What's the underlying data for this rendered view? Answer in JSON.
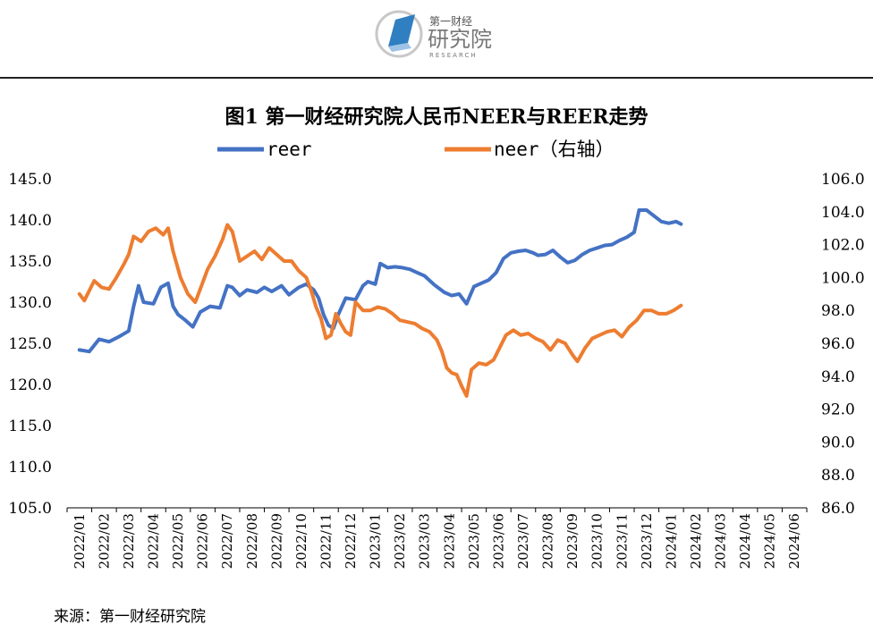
{
  "brand": {
    "cn": "第一财经",
    "name": "研究院",
    "sub": "RESEARCH"
  },
  "colors": {
    "reer": "#4472C4",
    "neer": "#ED7D31",
    "rule": "#222222",
    "logo": "#2f7fc1"
  },
  "footer": {
    "source": "来源：第一财经研究院"
  },
  "chart_data": {
    "type": "line",
    "title": "图1 第一财经研究院人民币NEER与REER走势",
    "categories": [
      "2022/01",
      "2022/02",
      "2022/03",
      "2022/04",
      "2022/05",
      "2022/06",
      "2022/07",
      "2022/08",
      "2022/09",
      "2022/10",
      "2022/11",
      "2022/12",
      "2023/01",
      "2023/02",
      "2023/03",
      "2023/04",
      "2023/05",
      "2023/06",
      "2023/07",
      "2023/08",
      "2023/09",
      "2023/10",
      "2023/11",
      "2023/12",
      "2024/01",
      "2024/02",
      "2024/03",
      "2024/04",
      "2024/05",
      "2024/06"
    ],
    "y_left": {
      "min": 105,
      "max": 145,
      "ticks": [
        "105.0",
        "110.0",
        "115.0",
        "120.0",
        "125.0",
        "130.0",
        "135.0",
        "140.0",
        "145.0"
      ]
    },
    "y_right": {
      "min": 86,
      "max": 106,
      "ticks": [
        "86.0",
        "88.0",
        "90.0",
        "92.0",
        "94.0",
        "96.0",
        "98.0",
        "100.0",
        "102.0",
        "104.0",
        "106.0"
      ]
    },
    "series": [
      {
        "name": "reer",
        "axis": "left",
        "points": [
          [
            0,
            124.2
          ],
          [
            0.4,
            124.0
          ],
          [
            0.8,
            125.5
          ],
          [
            1.2,
            125.2
          ],
          [
            1.6,
            125.8
          ],
          [
            2.0,
            126.5
          ],
          [
            2.2,
            129.5
          ],
          [
            2.4,
            132.0
          ],
          [
            2.6,
            130.0
          ],
          [
            3.0,
            129.8
          ],
          [
            3.3,
            131.8
          ],
          [
            3.6,
            132.3
          ],
          [
            3.8,
            129.5
          ],
          [
            4.0,
            128.5
          ],
          [
            4.3,
            127.8
          ],
          [
            4.6,
            127.0
          ],
          [
            4.9,
            128.8
          ],
          [
            5.3,
            129.5
          ],
          [
            5.7,
            129.3
          ],
          [
            6.0,
            132.0
          ],
          [
            6.2,
            131.8
          ],
          [
            6.5,
            130.8
          ],
          [
            6.8,
            131.5
          ],
          [
            7.2,
            131.2
          ],
          [
            7.5,
            131.8
          ],
          [
            7.8,
            131.3
          ],
          [
            8.2,
            132.0
          ],
          [
            8.5,
            130.9
          ],
          [
            8.9,
            131.8
          ],
          [
            9.2,
            132.2
          ],
          [
            9.5,
            131.5
          ],
          [
            9.7,
            130.5
          ],
          [
            9.9,
            128.5
          ],
          [
            10.1,
            127.2
          ],
          [
            10.3,
            126.8
          ],
          [
            10.5,
            128.5
          ],
          [
            10.8,
            130.5
          ],
          [
            11.2,
            130.3
          ],
          [
            11.5,
            132.0
          ],
          [
            11.7,
            132.5
          ],
          [
            12.0,
            132.2
          ],
          [
            12.2,
            134.7
          ],
          [
            12.5,
            134.2
          ],
          [
            12.8,
            134.3
          ],
          [
            13.1,
            134.2
          ],
          [
            13.4,
            134.0
          ],
          [
            13.7,
            133.6
          ],
          [
            14.0,
            133.2
          ],
          [
            14.4,
            132.1
          ],
          [
            14.8,
            131.2
          ],
          [
            15.1,
            130.8
          ],
          [
            15.4,
            131.0
          ],
          [
            15.7,
            129.8
          ],
          [
            16.0,
            131.9
          ],
          [
            16.3,
            132.3
          ],
          [
            16.6,
            132.7
          ],
          [
            16.9,
            133.6
          ],
          [
            17.2,
            135.3
          ],
          [
            17.5,
            136.0
          ],
          [
            17.8,
            136.2
          ],
          [
            18.1,
            136.3
          ],
          [
            18.4,
            136.0
          ],
          [
            18.6,
            135.7
          ],
          [
            18.9,
            135.8
          ],
          [
            19.2,
            136.3
          ],
          [
            19.5,
            135.5
          ],
          [
            19.8,
            134.8
          ],
          [
            20.1,
            135.1
          ],
          [
            20.4,
            135.8
          ],
          [
            20.7,
            136.3
          ],
          [
            21.0,
            136.6
          ],
          [
            21.3,
            136.9
          ],
          [
            21.6,
            137.0
          ],
          [
            21.9,
            137.5
          ],
          [
            22.2,
            137.9
          ],
          [
            22.5,
            138.5
          ],
          [
            22.7,
            141.2
          ],
          [
            23.0,
            141.2
          ],
          [
            23.3,
            140.5
          ],
          [
            23.6,
            139.8
          ],
          [
            23.9,
            139.6
          ],
          [
            24.2,
            139.8
          ],
          [
            24.4,
            139.5
          ]
        ]
      },
      {
        "name": "neer（右轴）",
        "axis": "right",
        "points": [
          [
            0,
            99.0
          ],
          [
            0.2,
            98.6
          ],
          [
            0.4,
            99.2
          ],
          [
            0.6,
            99.8
          ],
          [
            0.9,
            99.4
          ],
          [
            1.2,
            99.3
          ],
          [
            1.5,
            100.0
          ],
          [
            1.8,
            100.8
          ],
          [
            2.0,
            101.4
          ],
          [
            2.2,
            102.5
          ],
          [
            2.5,
            102.2
          ],
          [
            2.8,
            102.8
          ],
          [
            3.1,
            103.0
          ],
          [
            3.4,
            102.6
          ],
          [
            3.6,
            103.0
          ],
          [
            3.8,
            101.6
          ],
          [
            4.1,
            100.0
          ],
          [
            4.4,
            99.0
          ],
          [
            4.7,
            98.5
          ],
          [
            4.9,
            99.3
          ],
          [
            5.2,
            100.5
          ],
          [
            5.5,
            101.3
          ],
          [
            5.8,
            102.3
          ],
          [
            6.0,
            103.2
          ],
          [
            6.2,
            102.8
          ],
          [
            6.5,
            101.0
          ],
          [
            6.8,
            101.3
          ],
          [
            7.1,
            101.6
          ],
          [
            7.4,
            101.1
          ],
          [
            7.7,
            101.8
          ],
          [
            8.0,
            101.4
          ],
          [
            8.3,
            101.0
          ],
          [
            8.6,
            101.0
          ],
          [
            8.9,
            100.4
          ],
          [
            9.2,
            100.0
          ],
          [
            9.4,
            99.2
          ],
          [
            9.6,
            98.2
          ],
          [
            9.8,
            97.5
          ],
          [
            10.0,
            96.3
          ],
          [
            10.2,
            96.5
          ],
          [
            10.4,
            97.8
          ],
          [
            10.6,
            97.2
          ],
          [
            10.8,
            96.7
          ],
          [
            11.0,
            96.5
          ],
          [
            11.2,
            98.5
          ],
          [
            11.5,
            98.0
          ],
          [
            11.8,
            98.0
          ],
          [
            12.1,
            98.2
          ],
          [
            12.4,
            98.1
          ],
          [
            12.7,
            97.8
          ],
          [
            13.0,
            97.4
          ],
          [
            13.3,
            97.3
          ],
          [
            13.6,
            97.2
          ],
          [
            13.9,
            96.9
          ],
          [
            14.2,
            96.7
          ],
          [
            14.5,
            96.2
          ],
          [
            14.7,
            95.5
          ],
          [
            14.9,
            94.5
          ],
          [
            15.1,
            94.2
          ],
          [
            15.3,
            94.1
          ],
          [
            15.5,
            93.4
          ],
          [
            15.7,
            92.8
          ],
          [
            15.9,
            94.4
          ],
          [
            16.2,
            94.8
          ],
          [
            16.5,
            94.7
          ],
          [
            16.8,
            95.0
          ],
          [
            17.0,
            95.6
          ],
          [
            17.3,
            96.5
          ],
          [
            17.6,
            96.8
          ],
          [
            17.9,
            96.5
          ],
          [
            18.2,
            96.6
          ],
          [
            18.5,
            96.3
          ],
          [
            18.8,
            96.1
          ],
          [
            19.1,
            95.6
          ],
          [
            19.4,
            96.2
          ],
          [
            19.7,
            96.0
          ],
          [
            20.0,
            95.3
          ],
          [
            20.2,
            94.9
          ],
          [
            20.5,
            95.7
          ],
          [
            20.8,
            96.3
          ],
          [
            21.1,
            96.5
          ],
          [
            21.4,
            96.7
          ],
          [
            21.7,
            96.8
          ],
          [
            22.0,
            96.4
          ],
          [
            22.3,
            97.0
          ],
          [
            22.6,
            97.4
          ],
          [
            22.9,
            98.0
          ],
          [
            23.2,
            98.0
          ],
          [
            23.5,
            97.8
          ],
          [
            23.8,
            97.8
          ],
          [
            24.1,
            98.0
          ],
          [
            24.4,
            98.3
          ]
        ]
      }
    ]
  }
}
